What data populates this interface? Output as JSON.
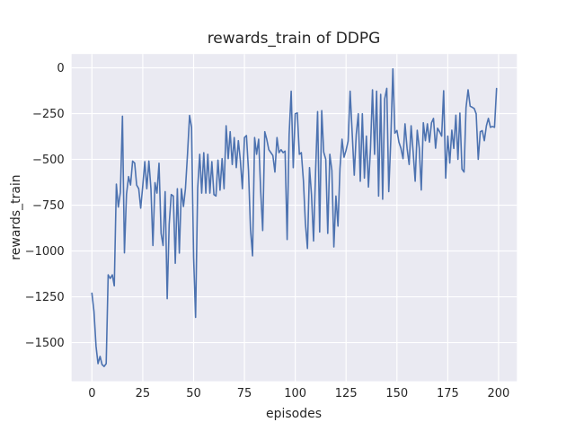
{
  "figure": {
    "kind": "matplotlib-seaborn-darkgrid-figure"
  },
  "chart_data": {
    "type": "line",
    "title": "rewards_train of DDPG",
    "xlabel": "episodes",
    "ylabel": "rewards_train",
    "legend": "none",
    "grid": true,
    "xlim": [
      -10,
      209
    ],
    "ylim": [
      -1711,
      75
    ],
    "xticks": [
      0,
      25,
      50,
      75,
      100,
      125,
      150,
      175,
      200
    ],
    "yticks": [
      0,
      -250,
      -500,
      -750,
      -1000,
      -1250,
      -1500
    ],
    "xtick_labels": [
      "0",
      "25",
      "50",
      "75",
      "100",
      "125",
      "150",
      "175",
      "200"
    ],
    "ytick_labels": [
      "0",
      "−250",
      "−500",
      "−750",
      "−1000",
      "−1250",
      "−1500"
    ],
    "colors": {
      "line": "#4C72B0",
      "axes_background": "#EAEAF2",
      "grid": "#FFFFFF",
      "text": "#262626",
      "figure_background": "#FFFFFF"
    },
    "series": [
      {
        "name": "rewards_train",
        "x_start": 0,
        "x_step": 1,
        "values": [
          -1230,
          -1330,
          -1520,
          -1615,
          -1575,
          -1620,
          -1630,
          -1615,
          -1130,
          -1150,
          -1130,
          -1190,
          -635,
          -760,
          -680,
          -264,
          -1010,
          -690,
          -594,
          -640,
          -509,
          -520,
          -640,
          -660,
          -766,
          -644,
          -512,
          -660,
          -509,
          -660,
          -970,
          -627,
          -684,
          -521,
          -904,
          -970,
          -676,
          -1260,
          -855,
          -692,
          -700,
          -1067,
          -660,
          -1011,
          -660,
          -757,
          -660,
          -472,
          -260,
          -324,
          -1035,
          -1362,
          -660,
          -472,
          -684,
          -463,
          -684,
          -472,
          -684,
          -512,
          -692,
          -700,
          -504,
          -668,
          -496,
          -660,
          -316,
          -496,
          -349,
          -528,
          -381,
          -545,
          -398,
          -504,
          -660,
          -381,
          -370,
          -561,
          -880,
          -1027,
          -381,
          -472,
          -390,
          -676,
          -888,
          -349,
          -390,
          -447,
          -463,
          -479,
          -569,
          -381,
          -463,
          -447,
          -463,
          -455,
          -937,
          -365,
          -128,
          -545,
          -251,
          -246,
          -472,
          -463,
          -615,
          -847,
          -986,
          -545,
          -692,
          -945,
          -560,
          -239,
          -896,
          -234,
          -460,
          -500,
          -904,
          -472,
          -560,
          -978,
          -700,
          -864,
          -550,
          -390,
          -488,
          -450,
          -400,
          -128,
          -357,
          -586,
          -365,
          -251,
          -619,
          -251,
          -602,
          -373,
          -651,
          -439,
          -120,
          -472,
          -128,
          -700,
          -145,
          -717,
          -169,
          -112,
          -676,
          -390,
          -6,
          -357,
          -342,
          -406,
          -440,
          -496,
          -306,
          -439,
          -528,
          -316,
          -463,
          -619,
          -341,
          -439,
          -667,
          -300,
          -398,
          -306,
          -406,
          -300,
          -276,
          -439,
          -330,
          -349,
          -373,
          -125,
          -602,
          -373,
          -520,
          -340,
          -440,
          -259,
          -500,
          -247,
          -553,
          -569,
          -218,
          -120,
          -210,
          -215,
          -222,
          -251,
          -500,
          -349,
          -343,
          -398,
          -316,
          -276,
          -325,
          -320,
          -325,
          -113
        ]
      }
    ]
  }
}
